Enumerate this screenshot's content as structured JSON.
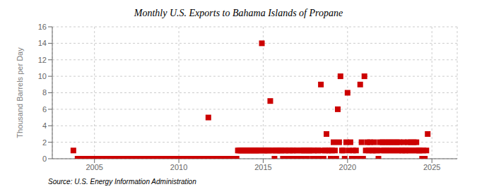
{
  "chart_data": {
    "type": "scatter",
    "title": "Monthly U.S. Exports to Bahama Islands of Propane",
    "ylabel": "Thousand Barrels per Day",
    "annotations": [
      "Source: U.S. Energy Information Administration"
    ],
    "color": "#cc0000",
    "marker": "square",
    "grid": true,
    "xlim": [
      2002.5,
      2026.5
    ],
    "xticks": [
      2005,
      2010,
      2015,
      2020,
      2025
    ],
    "ylim": [
      0,
      16
    ],
    "yticks": [
      0,
      2,
      4,
      6,
      8,
      10,
      12,
      14,
      16
    ],
    "x": [
      2003.75,
      2004.0,
      2004.08,
      2004.17,
      2004.25,
      2004.33,
      2004.42,
      2004.5,
      2004.58,
      2004.67,
      2004.75,
      2004.83,
      2004.92,
      2005.0,
      2005.08,
      2005.17,
      2005.25,
      2005.33,
      2005.42,
      2005.5,
      2005.58,
      2005.67,
      2005.75,
      2005.83,
      2005.92,
      2006.0,
      2006.08,
      2006.17,
      2006.25,
      2006.33,
      2006.42,
      2006.5,
      2006.58,
      2006.67,
      2006.75,
      2006.83,
      2006.92,
      2007.0,
      2007.08,
      2007.17,
      2007.25,
      2007.33,
      2007.42,
      2007.5,
      2007.58,
      2007.67,
      2007.75,
      2007.83,
      2007.92,
      2008.0,
      2008.08,
      2008.17,
      2008.25,
      2008.33,
      2008.42,
      2008.5,
      2008.58,
      2008.67,
      2008.75,
      2008.83,
      2008.92,
      2009.0,
      2009.08,
      2009.17,
      2009.25,
      2009.33,
      2009.42,
      2009.5,
      2009.58,
      2009.67,
      2009.75,
      2009.83,
      2009.92,
      2010.0,
      2010.08,
      2010.17,
      2010.25,
      2010.33,
      2010.42,
      2010.5,
      2010.58,
      2010.67,
      2010.75,
      2010.83,
      2010.92,
      2011.0,
      2011.08,
      2011.17,
      2011.25,
      2011.33,
      2011.42,
      2011.5,
      2011.58,
      2011.67,
      2011.75,
      2011.83,
      2011.92,
      2012.0,
      2012.08,
      2012.17,
      2012.25,
      2012.33,
      2012.42,
      2012.5,
      2012.58,
      2012.67,
      2012.75,
      2012.83,
      2012.92,
      2013.0,
      2013.08,
      2013.17,
      2013.25,
      2013.33,
      2013.42,
      2013.5,
      2013.58,
      2013.67,
      2013.75,
      2013.83,
      2013.92,
      2014.0,
      2014.08,
      2014.17,
      2014.25,
      2014.33,
      2014.42,
      2014.5,
      2014.58,
      2014.67,
      2014.75,
      2014.83,
      2014.92,
      2015.0,
      2015.08,
      2015.17,
      2015.25,
      2015.33,
      2015.42,
      2015.5,
      2015.58,
      2015.67,
      2015.75,
      2015.83,
      2015.92,
      2016.0,
      2016.08,
      2016.17,
      2016.25,
      2016.33,
      2016.42,
      2016.5,
      2016.58,
      2016.67,
      2016.75,
      2016.83,
      2016.92,
      2017.0,
      2017.08,
      2017.17,
      2017.25,
      2017.33,
      2017.42,
      2017.5,
      2017.58,
      2017.67,
      2017.75,
      2017.83,
      2017.92,
      2018.0,
      2018.08,
      2018.17,
      2018.25,
      2018.33,
      2018.42,
      2018.5,
      2018.58,
      2018.67,
      2018.75,
      2018.83,
      2018.92,
      2019.0,
      2019.08,
      2019.17,
      2019.25,
      2019.33,
      2019.42,
      2019.5,
      2019.58,
      2019.67,
      2019.75,
      2019.83,
      2019.92,
      2020.0,
      2020.08,
      2020.17,
      2020.25,
      2020.33,
      2020.42,
      2020.5,
      2020.58,
      2020.67,
      2020.75,
      2020.83,
      2020.92,
      2021.0,
      2021.08,
      2021.17,
      2021.25,
      2021.33,
      2021.42,
      2021.5,
      2021.58,
      2021.67,
      2021.75,
      2021.83,
      2021.92,
      2022.0,
      2022.08,
      2022.17,
      2022.25,
      2022.33,
      2022.42,
      2022.5,
      2022.58,
      2022.67,
      2022.75,
      2022.83,
      2022.92,
      2023.0,
      2023.08,
      2023.17,
      2023.25,
      2023.33,
      2023.42,
      2023.5,
      2023.58,
      2023.67,
      2023.75,
      2023.83,
      2023.92,
      2024.0,
      2024.08,
      2024.17,
      2024.25,
      2024.33,
      2024.42,
      2024.5,
      2024.58,
      2024.67,
      2024.75
    ],
    "values": [
      1,
      0,
      0,
      0,
      0,
      0,
      0,
      0,
      0,
      0,
      0,
      0,
      0,
      0,
      0,
      0,
      0,
      0,
      0,
      0,
      0,
      0,
      0,
      0,
      0,
      0,
      0,
      0,
      0,
      0,
      0,
      0,
      0,
      0,
      0,
      0,
      0,
      0,
      0,
      0,
      0,
      0,
      0,
      0,
      0,
      0,
      0,
      0,
      0,
      0,
      0,
      0,
      0,
      0,
      0,
      0,
      0,
      0,
      0,
      0,
      0,
      0,
      0,
      0,
      0,
      0,
      0,
      0,
      0,
      0,
      0,
      0,
      0,
      0,
      0,
      0,
      0,
      0,
      0,
      0,
      0,
      0,
      0,
      0,
      0,
      0,
      0,
      0,
      0,
      0,
      0,
      0,
      0,
      0,
      5,
      0,
      0,
      0,
      0,
      0,
      0,
      0,
      0,
      0,
      0,
      0,
      0,
      0,
      0,
      0,
      0,
      0,
      0,
      0,
      0,
      1,
      1,
      1,
      1,
      1,
      1,
      1,
      1,
      1,
      1,
      1,
      1,
      1,
      1,
      1,
      1,
      1,
      14,
      1,
      1,
      1,
      1,
      1,
      7,
      1,
      1,
      0,
      1,
      1,
      1,
      1,
      1,
      0,
      1,
      1,
      0,
      1,
      1,
      0,
      1,
      1,
      0,
      1,
      0,
      1,
      0,
      1,
      1,
      1,
      0,
      1,
      1,
      1,
      0,
      1,
      0,
      1,
      1,
      0,
      9,
      1,
      0,
      1,
      3,
      1,
      1,
      0,
      1,
      2,
      1,
      0,
      6,
      2,
      10,
      1,
      1,
      0,
      2,
      8,
      1,
      2,
      0,
      1,
      0,
      1,
      0,
      0,
      9,
      2,
      0,
      10,
      1,
      2,
      1,
      2,
      1,
      1,
      2,
      1,
      1,
      0,
      2,
      1,
      2,
      1,
      2,
      1,
      2,
      1,
      2,
      1,
      2,
      1,
      2,
      1,
      2,
      1,
      1,
      2,
      1,
      1,
      2,
      1,
      2,
      1,
      2,
      1,
      2,
      1,
      1,
      1,
      0,
      1,
      0,
      1,
      3
    ]
  }
}
